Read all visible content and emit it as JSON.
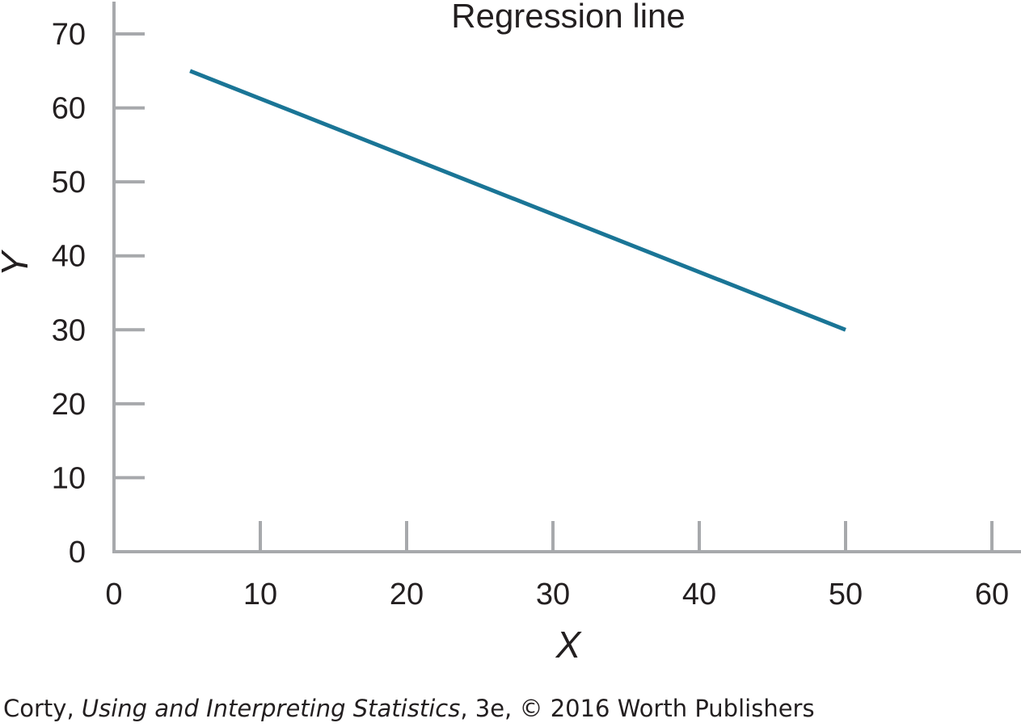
{
  "chart_data": {
    "type": "line",
    "title": "",
    "xlabel": "X",
    "ylabel": "Y",
    "xlim": [
      0,
      60
    ],
    "ylim": [
      0,
      70
    ],
    "x_ticks": [
      0,
      10,
      20,
      30,
      40,
      50,
      60
    ],
    "y_ticks": [
      0,
      10,
      20,
      30,
      40,
      50,
      60,
      70
    ],
    "grid": false,
    "series": [
      {
        "x": [
          5.2,
          50
        ],
        "y": [
          65,
          30
        ],
        "color": "#1a7596"
      }
    ],
    "annotations": [
      {
        "text": "Regression line"
      }
    ]
  },
  "colors": {
    "axis": "#a7a9ac",
    "line": "#1a7596",
    "text": "#231f20"
  },
  "credit": {
    "author": "Corty, ",
    "book_title": "Using and Interpreting Statistics",
    "edition_copyright": ", 3e, © 2016 Worth Publishers"
  }
}
